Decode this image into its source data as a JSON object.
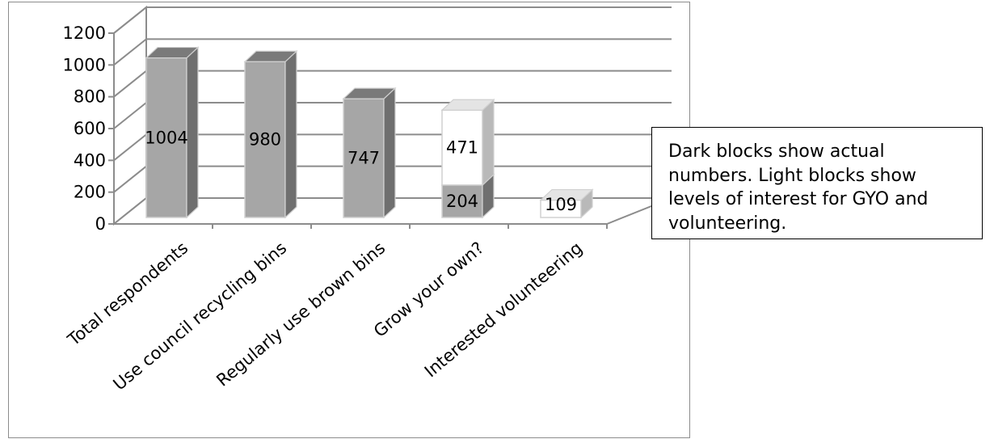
{
  "chart_data": {
    "type": "bar",
    "style": "3d-column",
    "categories": [
      "Total respondents",
      "Use council recycling bins",
      "Regularly use brown bins",
      "Grow your own?",
      "Interested volunteering"
    ],
    "values_actual": [
      1004,
      980,
      747,
      204,
      0
    ],
    "values_interest": [
      null,
      null,
      null,
      471,
      109
    ],
    "labels": [
      "1004",
      "980",
      "747",
      "204",
      "471",
      "109"
    ],
    "yticks": [
      0,
      200,
      400,
      600,
      800,
      1000,
      1200
    ],
    "ylim": [
      0,
      1200
    ],
    "grid": true,
    "legend": "none",
    "colors": {
      "dark_front": "#a6a6a6",
      "dark_side": "#6f6f6f",
      "dark_top": "#7a7a7a",
      "light_front": "#ffffff",
      "light_side": "#b9b9b9",
      "light_top": "#e4e4e4",
      "grid": "#8c8c8c"
    }
  },
  "note": {
    "text": "Dark blocks show actual numbers. Light blocks show levels of interest for GYO and volunteering."
  }
}
